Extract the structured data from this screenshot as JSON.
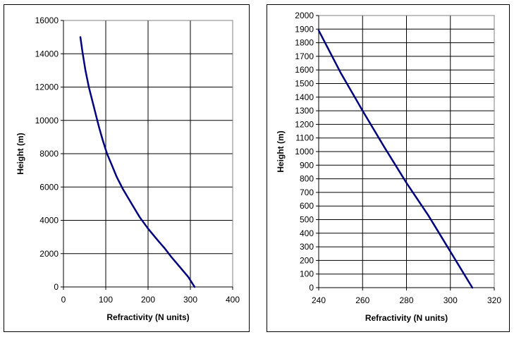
{
  "chart_data": [
    {
      "type": "line",
      "xlabel": "Refractivity (N units)",
      "ylabel": "Height (m)",
      "xlim": [
        0,
        400
      ],
      "ylim": [
        0,
        16000
      ],
      "xticks": [
        0,
        100,
        200,
        300,
        400
      ],
      "yticks": [
        0,
        2000,
        4000,
        6000,
        8000,
        10000,
        12000,
        14000,
        16000
      ],
      "grid": true,
      "line_color": "#000080",
      "series": [
        {
          "x": [
            310,
            295,
            275,
            255,
            240,
            223,
            200,
            180,
            161,
            140,
            126,
            113,
            103,
            93,
            84,
            76,
            68,
            60,
            52,
            45,
            40
          ],
          "y": [
            0,
            600,
            1200,
            1800,
            2300,
            2800,
            3500,
            4200,
            5000,
            5900,
            6600,
            7400,
            8000,
            8800,
            9600,
            10400,
            11200,
            12000,
            13000,
            14100,
            15000
          ]
        }
      ]
    },
    {
      "type": "line",
      "xlabel": "Refractivity (N units)",
      "ylabel": "Height (m)",
      "xlim": [
        240,
        320
      ],
      "ylim": [
        0,
        2000
      ],
      "xticks": [
        240,
        260,
        280,
        300,
        320
      ],
      "yticks": [
        0,
        100,
        200,
        300,
        400,
        500,
        600,
        700,
        800,
        900,
        1000,
        1100,
        1200,
        1300,
        1400,
        1500,
        1600,
        1700,
        1800,
        1900,
        2000
      ],
      "grid": true,
      "line_color": "#000080",
      "series": [
        {
          "x": [
            310,
            300,
            290,
            280,
            270,
            260,
            250,
            240
          ],
          "y": [
            0,
            265,
            530,
            770,
            1030,
            1300,
            1580,
            1890
          ]
        }
      ]
    }
  ]
}
